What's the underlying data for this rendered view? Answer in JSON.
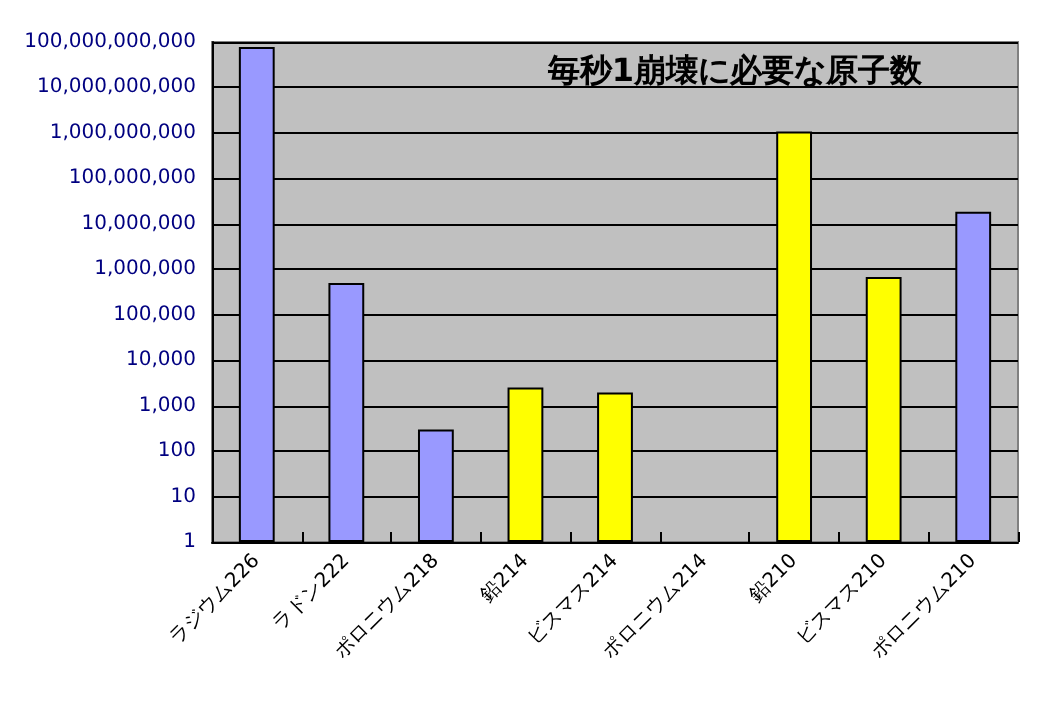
{
  "chart_data": {
    "type": "bar",
    "title": "毎秒1崩壊に必要な原子数",
    "categories": [
      "ラジウム226",
      "ラドン222",
      "ポロニウム218",
      "鉛214",
      "ビスマス214",
      "ポロニウム214",
      "鉛210",
      "ビスマス210",
      "ポロニウム210"
    ],
    "values": [
      78000000000,
      500000,
      300,
      2500,
      1950,
      null,
      1070000000,
      680000,
      18500000
    ],
    "colors": [
      "#9999ff",
      "#9999ff",
      "#9999ff",
      "#ffff00",
      "#ffff00",
      "#ffff00",
      "#ffff00",
      "#ffff00",
      "#9999ff"
    ],
    "log": true,
    "ylim": [
      1,
      100000000000
    ],
    "yticks": [
      1,
      10,
      100,
      {
        "value": 1000,
        "label": "1,000"
      },
      {
        "value": 10000,
        "label": "10,000"
      },
      {
        "value": 100000,
        "label": "100,000"
      },
      {
        "value": 1000000,
        "label": "1,000,000"
      },
      {
        "value": 10000000,
        "label": "10,000,000"
      },
      {
        "value": 100000000,
        "label": "100,000,000"
      },
      {
        "value": 1000000000,
        "label": "1,000,000,000"
      },
      {
        "value": 10000000000,
        "label": "10,000,000,000"
      },
      {
        "value": 100000000000,
        "label": "100,000,000,000"
      }
    ],
    "grid": "y"
  }
}
